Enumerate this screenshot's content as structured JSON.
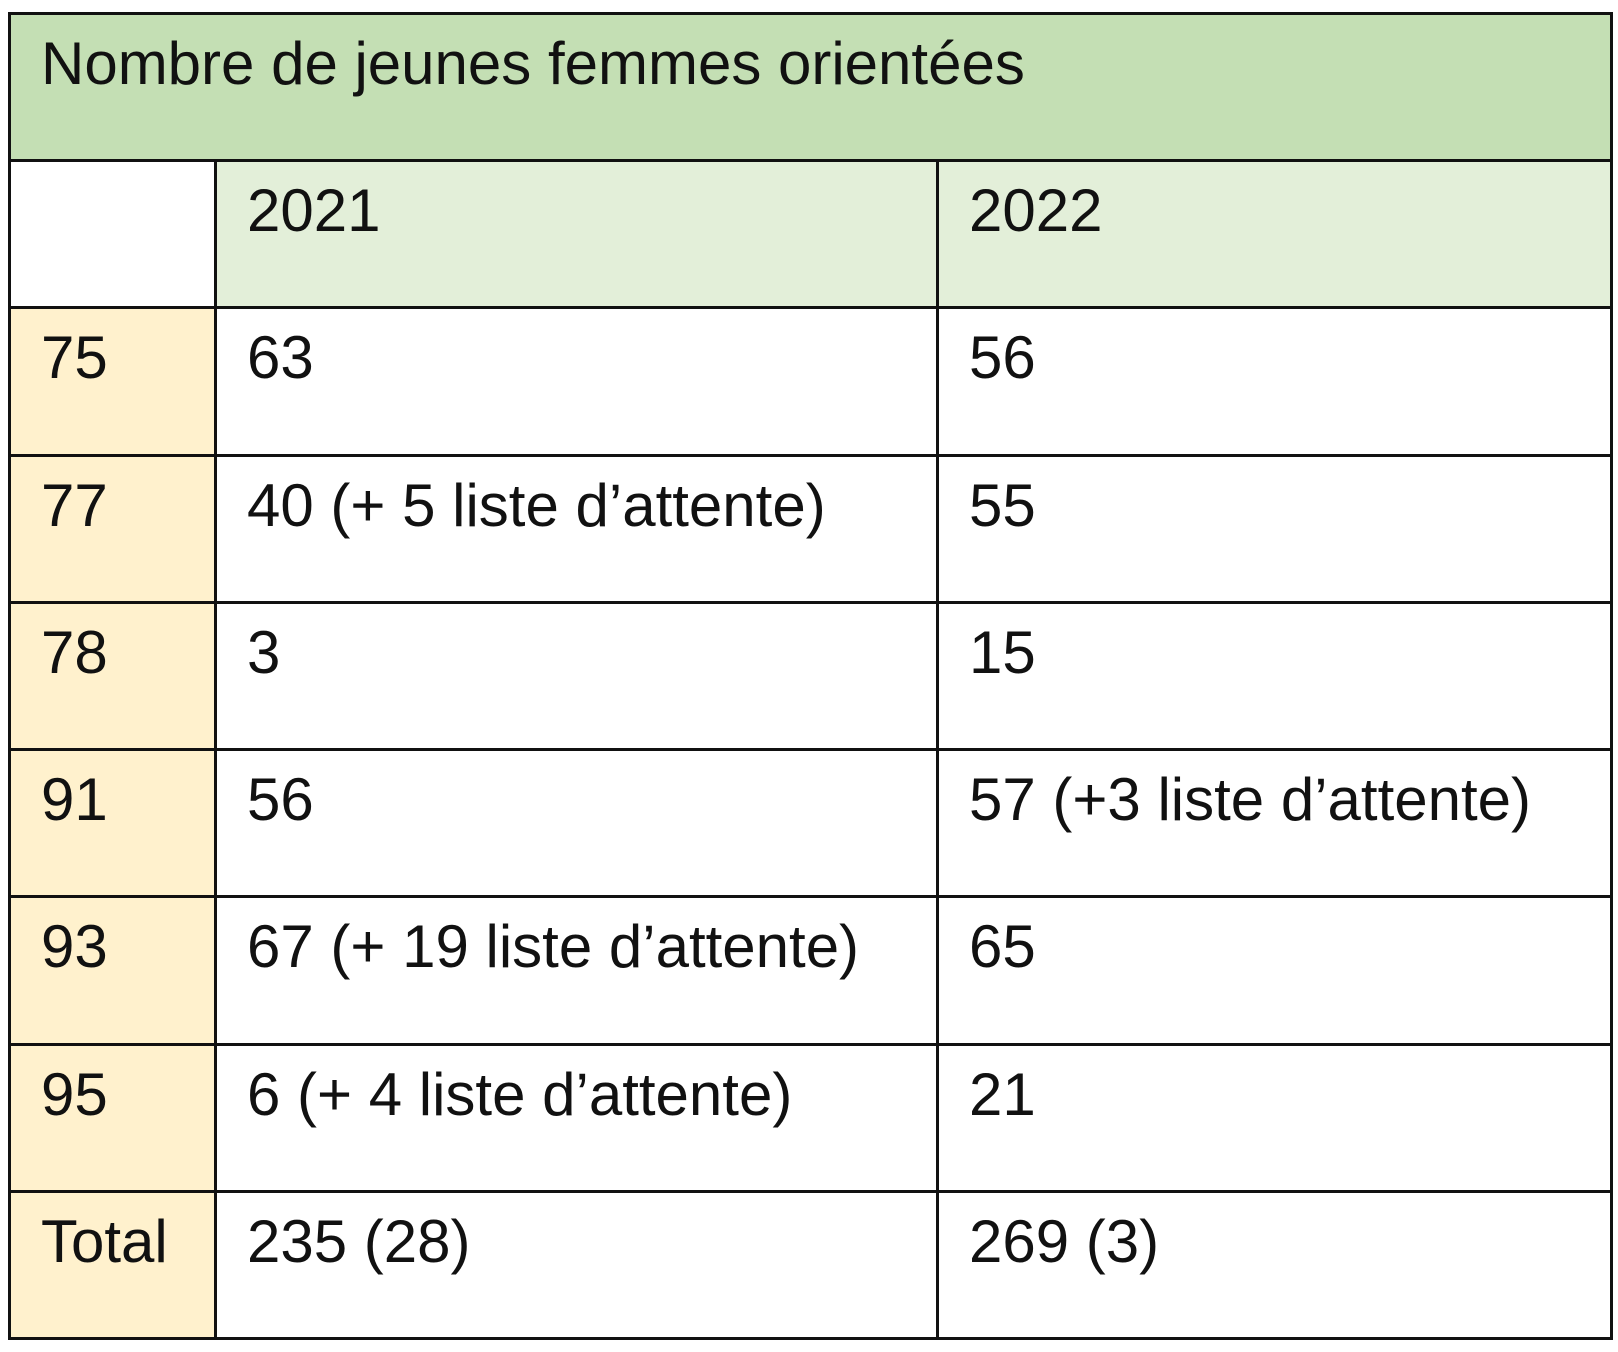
{
  "table": {
    "title": "Nombre de jeunes femmes orientées",
    "columns": [
      "2021",
      "2022"
    ],
    "rows": [
      {
        "label": "75",
        "v2021": "63",
        "v2022": "56"
      },
      {
        "label": "77",
        "v2021": "40 (+ 5 liste d’attente)",
        "v2022": "55"
      },
      {
        "label": "78",
        "v2021": "3",
        "v2022": "15"
      },
      {
        "label": "91",
        "v2021": "56",
        "v2022": "57 (+3 liste d’attente)"
      },
      {
        "label": "93",
        "v2021": "67 (+ 19 liste d’attente)",
        "v2022": "65"
      },
      {
        "label": "95",
        "v2021": "6 (+ 4 liste d’attente)",
        "v2022": "21"
      },
      {
        "label": "Total",
        "v2021": "235 (28)",
        "v2022": "269 (3)"
      }
    ]
  },
  "colors": {
    "title_bg": "#c4dfb4",
    "year_header_bg": "#e3efd9",
    "row_label_bg": "#fff1cd",
    "border": "#111111"
  }
}
